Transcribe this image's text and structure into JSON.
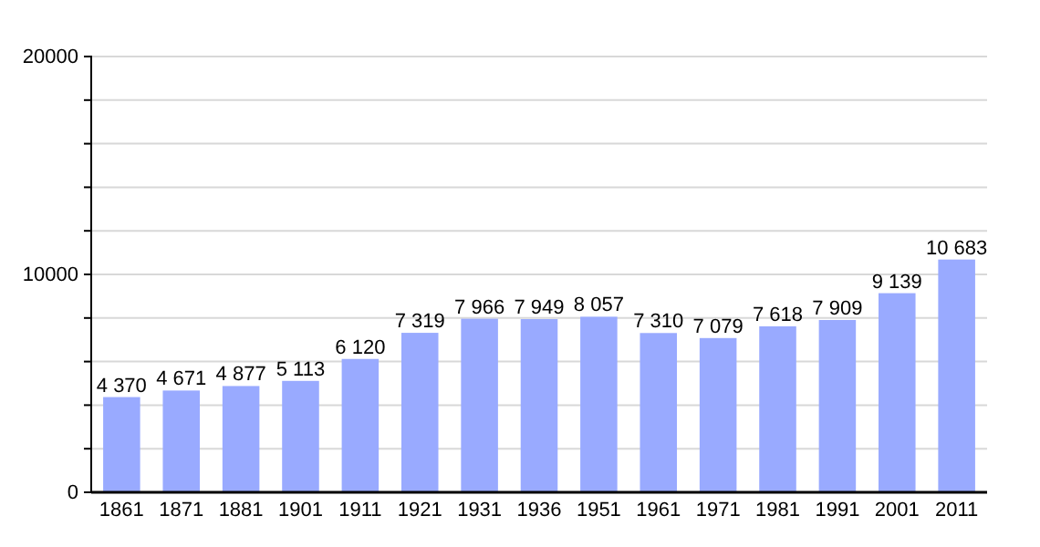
{
  "chart_data": {
    "type": "bar",
    "categories": [
      "1861",
      "1871",
      "1881",
      "1901",
      "1911",
      "1921",
      "1931",
      "1936",
      "1951",
      "1961",
      "1971",
      "1981",
      "1991",
      "2001",
      "2011"
    ],
    "values": [
      4370,
      4671,
      4877,
      5113,
      6120,
      7319,
      7966,
      7949,
      8057,
      7310,
      7079,
      7618,
      7909,
      9139,
      10683
    ],
    "value_labels": [
      "4 370",
      "4 671",
      "4 877",
      "5 113",
      "6 120",
      "7 319",
      "7 966",
      "7 949",
      "8 057",
      "7 310",
      "7 079",
      "7 618",
      "7 909",
      "9 139",
      "10 683"
    ],
    "color": "#99aaff",
    "ylim": [
      0,
      20000
    ],
    "yticks": [
      0,
      {
        "value": 2000,
        "label": null
      },
      {
        "value": 4000,
        "label": null
      },
      {
        "value": 6000,
        "label": null
      },
      {
        "value": 8000,
        "label": null
      },
      10000,
      {
        "value": 12000,
        "label": null
      },
      {
        "value": 14000,
        "label": null
      },
      {
        "value": 16000,
        "label": null
      },
      {
        "value": 18000,
        "label": null
      },
      20000
    ],
    "grid": true
  }
}
